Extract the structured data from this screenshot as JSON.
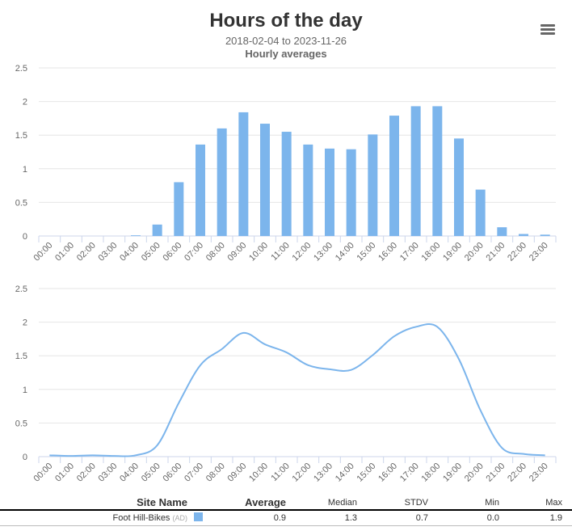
{
  "header": {
    "title": "Hours of the day",
    "subtitle": "2018-02-04 to 2023-11-26",
    "subtitle2": "Hourly averages",
    "menu_icon": "hamburger-icon"
  },
  "chart_data": [
    {
      "type": "bar",
      "categories": [
        "00:00",
        "01:00",
        "02:00",
        "03:00",
        "04:00",
        "05:00",
        "06:00",
        "07:00",
        "08:00",
        "09:00",
        "10:00",
        "11:00",
        "12:00",
        "13:00",
        "14:00",
        "15:00",
        "16:00",
        "17:00",
        "18:00",
        "19:00",
        "20:00",
        "21:00",
        "22:00",
        "23:00"
      ],
      "values": [
        0,
        0,
        0,
        0,
        0.01,
        0.17,
        0.8,
        1.36,
        1.6,
        1.84,
        1.67,
        1.55,
        1.36,
        1.3,
        1.29,
        1.51,
        1.79,
        1.93,
        1.93,
        1.45,
        0.69,
        0.13,
        0.03,
        0.02
      ],
      "ylim": [
        0,
        2.5
      ],
      "yticks": [
        "0",
        "0.5",
        "1",
        "1.5",
        "2",
        "2.5"
      ],
      "grid": true,
      "color": "#7cb5ec"
    },
    {
      "type": "line",
      "categories": [
        "00:00",
        "01:00",
        "02:00",
        "03:00",
        "04:00",
        "05:00",
        "06:00",
        "07:00",
        "08:00",
        "09:00",
        "10:00",
        "11:00",
        "12:00",
        "13:00",
        "14:00",
        "15:00",
        "16:00",
        "17:00",
        "18:00",
        "19:00",
        "20:00",
        "21:00",
        "22:00",
        "23:00"
      ],
      "values": [
        0.02,
        0.01,
        0.02,
        0.01,
        0.02,
        0.17,
        0.8,
        1.36,
        1.6,
        1.84,
        1.67,
        1.55,
        1.36,
        1.3,
        1.29,
        1.51,
        1.79,
        1.93,
        1.93,
        1.45,
        0.69,
        0.13,
        0.04,
        0.02
      ],
      "ylim": [
        0,
        2.5
      ],
      "yticks": [
        "0",
        "0.5",
        "1",
        "1.5",
        "2",
        "2.5"
      ],
      "grid": true,
      "color": "#7cb5ec",
      "smooth": true
    }
  ],
  "table": {
    "headers": [
      "Site Name",
      "Average",
      "Median",
      "STDV",
      "Min",
      "Max"
    ],
    "rows": [
      {
        "site": "Foot Hill-Bikes",
        "tag": "(AD)",
        "color": "#7cb5ec",
        "average": "0.9",
        "median": "1.3",
        "stdv": "0.7",
        "min": "0.0",
        "max": "1.9"
      }
    ]
  }
}
